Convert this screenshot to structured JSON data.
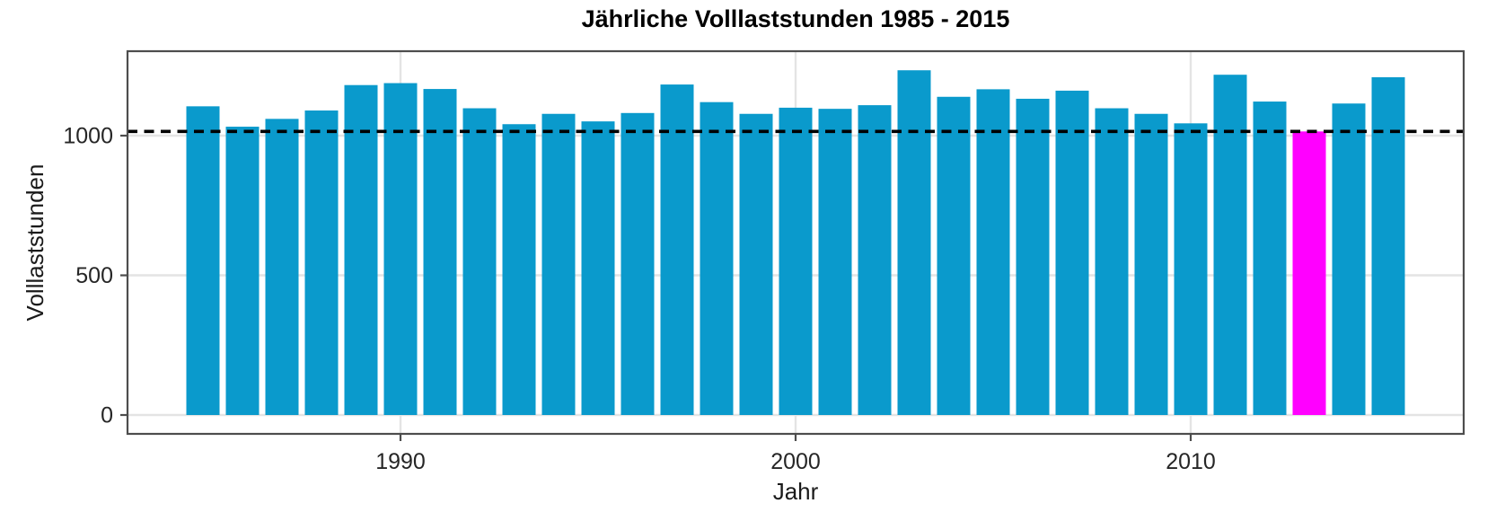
{
  "chart_data": {
    "type": "bar",
    "title": "Jährliche Volllaststunden 1985 - 2015",
    "xlabel": "Jahr",
    "ylabel": "Volllaststunden",
    "categories": [
      1985,
      1986,
      1987,
      1988,
      1989,
      1990,
      1991,
      1992,
      1993,
      1994,
      1995,
      1996,
      1997,
      1998,
      1999,
      2000,
      2001,
      2002,
      2003,
      2004,
      2005,
      2006,
      2007,
      2008,
      2009,
      2010,
      2011,
      2012,
      2013,
      2014,
      2015
    ],
    "values": [
      1105,
      1032,
      1060,
      1090,
      1181,
      1188,
      1167,
      1098,
      1041,
      1078,
      1051,
      1081,
      1183,
      1120,
      1078,
      1100,
      1096,
      1109,
      1234,
      1139,
      1166,
      1132,
      1161,
      1098,
      1078,
      1044,
      1218,
      1122,
      1015,
      1115,
      1209
    ],
    "bar_color": "#0a9acc",
    "highlight": {
      "year": 2013,
      "value": 1015,
      "color": "#ff00ff"
    },
    "reference_line": {
      "value": 1015,
      "style": "dashed",
      "color": "#000000"
    },
    "x_ticks": [
      "1990",
      "2000",
      "2010"
    ],
    "x_tick_years": [
      1990,
      2000,
      2010
    ],
    "y_ticks": [
      "0",
      "500",
      "1000"
    ],
    "y_tick_values": [
      0,
      500,
      1000
    ],
    "ylim": [
      -65,
      1302
    ],
    "xlim": [
      1983.1,
      2016.9
    ],
    "grid": true,
    "grid_color": "#e4e4e4",
    "panel_border_color": "#4d4d4d",
    "axis_text_color": "#262626",
    "legend": "none"
  }
}
